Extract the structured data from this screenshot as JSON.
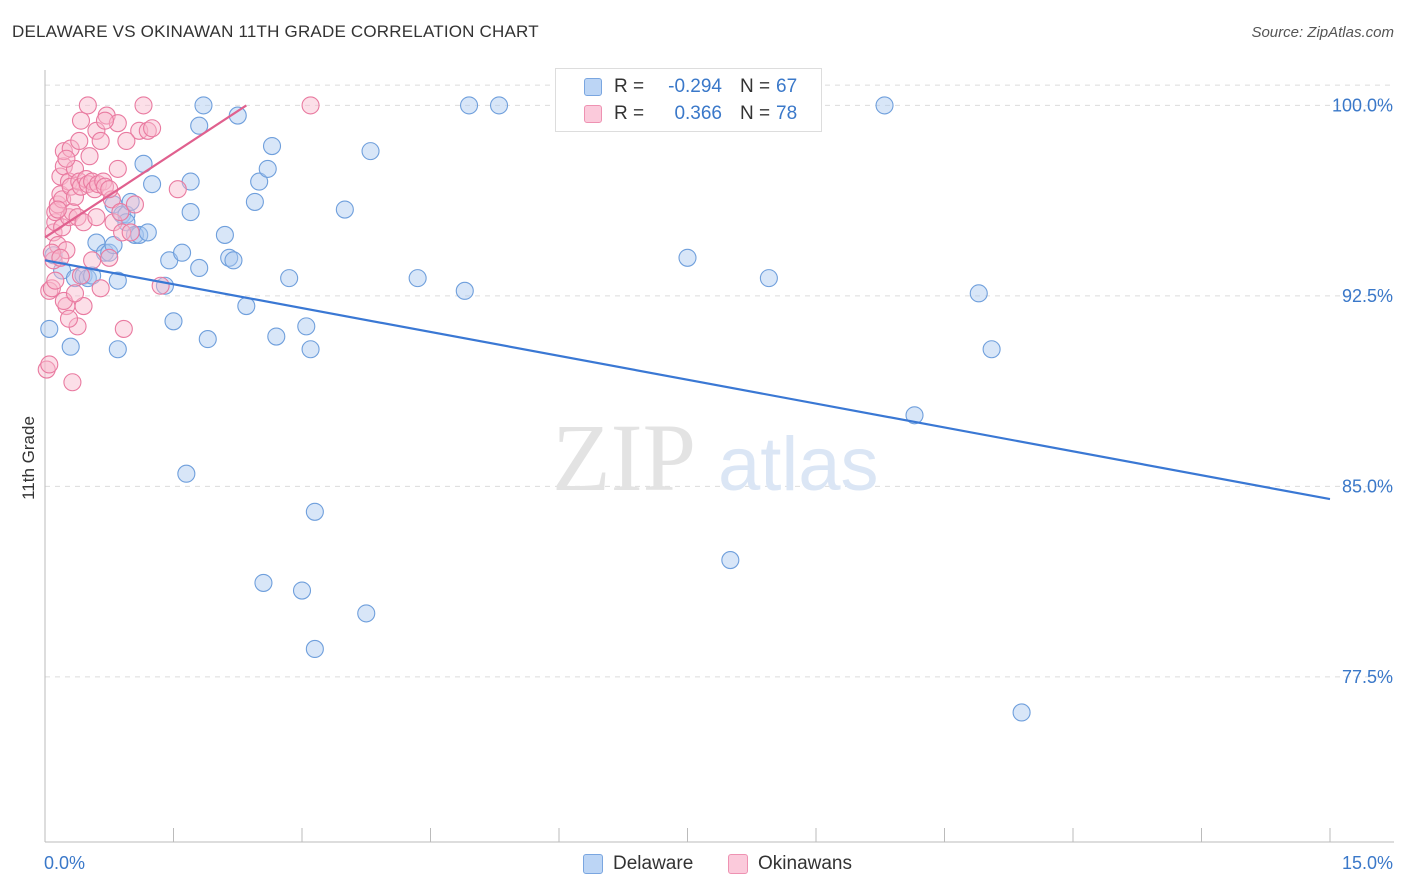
{
  "header": {
    "title": "DELAWARE VS OKINAWAN 11TH GRADE CORRELATION CHART",
    "source": "Source: ZipAtlas.com"
  },
  "legend": {
    "r_label": "R =",
    "n_label": "N =",
    "series": [
      {
        "r": "-0.294",
        "n": "67"
      },
      {
        "r": "0.366",
        "n": "78"
      }
    ]
  },
  "watermark": {
    "zip": "ZIP",
    "atlas": "atlas"
  },
  "colors": {
    "delaware_fill": "#a8c8f0",
    "delaware_stroke": "#6f9fdc",
    "delaware_line": "#3a78d4",
    "okinawan_fill": "#f8b8cc",
    "okinawan_stroke": "#e97aa0",
    "okinawan_line": "#e0608e",
    "tick_label": "#3a78c9",
    "grid": "#dcdcdc"
  },
  "chart_data": {
    "type": "scatter",
    "title": "DELAWARE VS OKINAWAN 11TH GRADE CORRELATION CHART",
    "xlabel": "",
    "ylabel": "11th Grade",
    "xlim": [
      0,
      15
    ],
    "ylim": [
      71.0,
      101.0
    ],
    "x_tick_labels": [
      "0.0%",
      "15.0%"
    ],
    "y_ticks": [
      77.5,
      85.0,
      92.5,
      100.0
    ],
    "y_tick_labels": [
      "77.5%",
      "85.0%",
      "92.5%",
      "100.0%"
    ],
    "series": [
      {
        "name": "Delaware",
        "r": -0.294,
        "n": 67,
        "trend": {
          "x": [
            0.0,
            15.0
          ],
          "y": [
            93.9,
            84.5
          ]
        },
        "points": [
          {
            "x": 0.05,
            "y": 91.2
          },
          {
            "x": 0.1,
            "y": 94.1
          },
          {
            "x": 0.2,
            "y": 93.5
          },
          {
            "x": 0.3,
            "y": 90.5
          },
          {
            "x": 0.35,
            "y": 93.2
          },
          {
            "x": 0.45,
            "y": 93.3
          },
          {
            "x": 0.5,
            "y": 93.2
          },
          {
            "x": 0.55,
            "y": 93.3
          },
          {
            "x": 0.6,
            "y": 94.6
          },
          {
            "x": 0.7,
            "y": 94.2
          },
          {
            "x": 0.75,
            "y": 94.2
          },
          {
            "x": 0.8,
            "y": 96.1
          },
          {
            "x": 0.85,
            "y": 93.1
          },
          {
            "x": 0.8,
            "y": 94.5
          },
          {
            "x": 0.9,
            "y": 95.7
          },
          {
            "x": 0.95,
            "y": 95.7
          },
          {
            "x": 0.85,
            "y": 90.4
          },
          {
            "x": 0.95,
            "y": 95.4
          },
          {
            "x": 1.05,
            "y": 94.9
          },
          {
            "x": 1.0,
            "y": 96.2
          },
          {
            "x": 1.1,
            "y": 94.9
          },
          {
            "x": 1.15,
            "y": 97.7
          },
          {
            "x": 1.2,
            "y": 95.0
          },
          {
            "x": 1.25,
            "y": 96.9
          },
          {
            "x": 1.4,
            "y": 92.9
          },
          {
            "x": 1.45,
            "y": 93.9
          },
          {
            "x": 1.5,
            "y": 91.5
          },
          {
            "x": 1.6,
            "y": 94.2
          },
          {
            "x": 1.65,
            "y": 85.5
          },
          {
            "x": 1.7,
            "y": 97.0
          },
          {
            "x": 1.7,
            "y": 95.8
          },
          {
            "x": 1.8,
            "y": 99.2
          },
          {
            "x": 1.8,
            "y": 93.6
          },
          {
            "x": 1.9,
            "y": 90.8
          },
          {
            "x": 1.85,
            "y": 100.0
          },
          {
            "x": 2.1,
            "y": 94.9
          },
          {
            "x": 2.15,
            "y": 94.0
          },
          {
            "x": 2.2,
            "y": 93.9
          },
          {
            "x": 2.25,
            "y": 99.6
          },
          {
            "x": 2.35,
            "y": 92.1
          },
          {
            "x": 2.45,
            "y": 96.2
          },
          {
            "x": 2.5,
            "y": 97.0
          },
          {
            "x": 2.6,
            "y": 97.5
          },
          {
            "x": 2.65,
            "y": 98.4
          },
          {
            "x": 2.7,
            "y": 90.9
          },
          {
            "x": 2.85,
            "y": 93.2
          },
          {
            "x": 3.05,
            "y": 91.3
          },
          {
            "x": 3.1,
            "y": 90.4
          },
          {
            "x": 3.15,
            "y": 84.0
          },
          {
            "x": 3.5,
            "y": 95.9
          },
          {
            "x": 3.75,
            "y": 80.0
          },
          {
            "x": 3.8,
            "y": 98.2
          },
          {
            "x": 4.35,
            "y": 93.2
          },
          {
            "x": 4.9,
            "y": 92.7
          },
          {
            "x": 4.95,
            "y": 100.0
          },
          {
            "x": 5.3,
            "y": 100.0
          },
          {
            "x": 7.5,
            "y": 94.0
          },
          {
            "x": 8.45,
            "y": 93.2
          },
          {
            "x": 8.0,
            "y": 82.1
          },
          {
            "x": 9.8,
            "y": 100.0
          },
          {
            "x": 10.15,
            "y": 87.8
          },
          {
            "x": 10.9,
            "y": 92.6
          },
          {
            "x": 11.05,
            "y": 90.4
          },
          {
            "x": 2.55,
            "y": 81.2
          },
          {
            "x": 3.0,
            "y": 80.9
          },
          {
            "x": 3.15,
            "y": 78.6
          },
          {
            "x": 11.4,
            "y": 76.1
          }
        ]
      },
      {
        "name": "Okinawans",
        "r": 0.366,
        "n": 78,
        "trend": {
          "x": [
            0.0,
            2.35
          ],
          "y": [
            94.8,
            100.0
          ]
        },
        "points": [
          {
            "x": 0.02,
            "y": 89.6
          },
          {
            "x": 0.05,
            "y": 89.8
          },
          {
            "x": 0.05,
            "y": 92.7
          },
          {
            "x": 0.08,
            "y": 92.8
          },
          {
            "x": 0.1,
            "y": 93.9
          },
          {
            "x": 0.1,
            "y": 95.0
          },
          {
            "x": 0.12,
            "y": 95.4
          },
          {
            "x": 0.12,
            "y": 95.8
          },
          {
            "x": 0.15,
            "y": 94.5
          },
          {
            "x": 0.15,
            "y": 96.1
          },
          {
            "x": 0.18,
            "y": 96.5
          },
          {
            "x": 0.18,
            "y": 97.2
          },
          {
            "x": 0.2,
            "y": 95.2
          },
          {
            "x": 0.2,
            "y": 96.3
          },
          {
            "x": 0.22,
            "y": 97.6
          },
          {
            "x": 0.22,
            "y": 98.2
          },
          {
            "x": 0.25,
            "y": 92.1
          },
          {
            "x": 0.25,
            "y": 94.3
          },
          {
            "x": 0.28,
            "y": 95.6
          },
          {
            "x": 0.28,
            "y": 97.0
          },
          {
            "x": 0.3,
            "y": 98.3
          },
          {
            "x": 0.3,
            "y": 96.8
          },
          {
            "x": 0.32,
            "y": 95.8
          },
          {
            "x": 0.32,
            "y": 89.1
          },
          {
            "x": 0.35,
            "y": 96.4
          },
          {
            "x": 0.35,
            "y": 97.5
          },
          {
            "x": 0.38,
            "y": 91.3
          },
          {
            "x": 0.38,
            "y": 95.6
          },
          {
            "x": 0.4,
            "y": 98.6
          },
          {
            "x": 0.4,
            "y": 97.0
          },
          {
            "x": 0.42,
            "y": 99.4
          },
          {
            "x": 0.42,
            "y": 96.8
          },
          {
            "x": 0.45,
            "y": 95.4
          },
          {
            "x": 0.45,
            "y": 92.1
          },
          {
            "x": 0.48,
            "y": 97.1
          },
          {
            "x": 0.5,
            "y": 100.0
          },
          {
            "x": 0.5,
            "y": 96.9
          },
          {
            "x": 0.52,
            "y": 98.0
          },
          {
            "x": 0.55,
            "y": 93.9
          },
          {
            "x": 0.55,
            "y": 97.0
          },
          {
            "x": 0.58,
            "y": 96.7
          },
          {
            "x": 0.6,
            "y": 99.0
          },
          {
            "x": 0.62,
            "y": 96.9
          },
          {
            "x": 0.65,
            "y": 98.6
          },
          {
            "x": 0.68,
            "y": 97.0
          },
          {
            "x": 0.7,
            "y": 96.8
          },
          {
            "x": 0.72,
            "y": 99.6
          },
          {
            "x": 0.75,
            "y": 94.0
          },
          {
            "x": 0.78,
            "y": 96.3
          },
          {
            "x": 0.8,
            "y": 95.4
          },
          {
            "x": 0.85,
            "y": 97.5
          },
          {
            "x": 0.85,
            "y": 99.3
          },
          {
            "x": 0.88,
            "y": 95.8
          },
          {
            "x": 0.9,
            "y": 95.0
          },
          {
            "x": 0.92,
            "y": 91.2
          },
          {
            "x": 1.0,
            "y": 95.0
          },
          {
            "x": 1.05,
            "y": 96.1
          },
          {
            "x": 1.1,
            "y": 99.0
          },
          {
            "x": 1.15,
            "y": 100.0
          },
          {
            "x": 1.2,
            "y": 99.0
          },
          {
            "x": 1.25,
            "y": 99.1
          },
          {
            "x": 1.35,
            "y": 92.9
          },
          {
            "x": 1.55,
            "y": 96.7
          },
          {
            "x": 3.1,
            "y": 100.0
          },
          {
            "x": 0.08,
            "y": 94.2
          },
          {
            "x": 0.12,
            "y": 93.1
          },
          {
            "x": 0.18,
            "y": 94.0
          },
          {
            "x": 0.22,
            "y": 92.3
          },
          {
            "x": 0.28,
            "y": 91.6
          },
          {
            "x": 0.35,
            "y": 92.6
          },
          {
            "x": 0.42,
            "y": 93.3
          },
          {
            "x": 0.6,
            "y": 95.6
          },
          {
            "x": 0.65,
            "y": 92.8
          },
          {
            "x": 0.7,
            "y": 99.4
          },
          {
            "x": 0.75,
            "y": 96.7
          },
          {
            "x": 0.95,
            "y": 98.6
          },
          {
            "x": 0.15,
            "y": 95.9
          },
          {
            "x": 0.25,
            "y": 97.9
          }
        ]
      }
    ],
    "grid": true,
    "legend_position": "bottom"
  }
}
